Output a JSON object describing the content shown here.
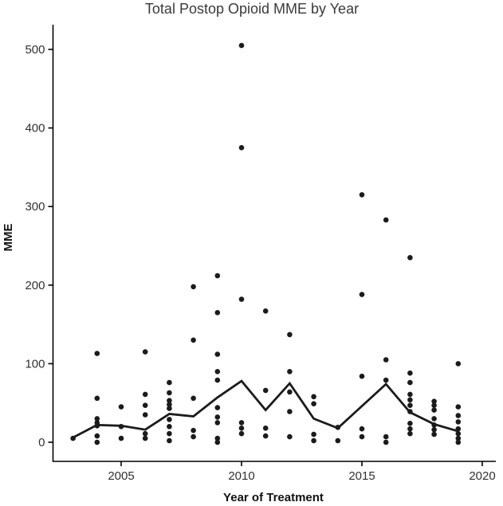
{
  "page": {
    "background": "#ffffff"
  },
  "chart_data": {
    "type": "scatter",
    "title": "Total Postop Opioid MME by Year",
    "xlabel": "Year of Treatment",
    "ylabel": "MME",
    "x_ticks": [
      2005,
      2010,
      2015,
      2020
    ],
    "y_ticks": [
      0,
      100,
      200,
      300,
      400,
      500
    ],
    "xlim": [
      2002.2,
      2020.6
    ],
    "ylim": [
      0,
      530
    ],
    "grid": false,
    "legend": "none",
    "point_color": "#1b1b1b",
    "line_color": "#1b1b1b",
    "axis_color": "#000000",
    "points_by_year": [
      {
        "year": 2003,
        "values": [
          5
        ]
      },
      {
        "year": 2004,
        "values": [
          113,
          56,
          30,
          25,
          21,
          8,
          0
        ]
      },
      {
        "year": 2005,
        "values": [
          45,
          20,
          5
        ]
      },
      {
        "year": 2006,
        "values": [
          115,
          61,
          47,
          35,
          11,
          5
        ]
      },
      {
        "year": 2007,
        "values": [
          76,
          63,
          53,
          48,
          43,
          29,
          20,
          11,
          2
        ]
      },
      {
        "year": 2008,
        "values": [
          198,
          130,
          56,
          15,
          7
        ]
      },
      {
        "year": 2009,
        "values": [
          212,
          165,
          112,
          90,
          79,
          44,
          32,
          25,
          5,
          0
        ]
      },
      {
        "year": 2010,
        "values": [
          505,
          375,
          182,
          25,
          18,
          11
        ]
      },
      {
        "year": 2011,
        "values": [
          167,
          66,
          18,
          8
        ]
      },
      {
        "year": 2012,
        "values": [
          137,
          90,
          64,
          39,
          7
        ]
      },
      {
        "year": 2013,
        "values": [
          58,
          49,
          10,
          2
        ]
      },
      {
        "year": 2014,
        "values": [
          19,
          2
        ]
      },
      {
        "year": 2015,
        "values": [
          315,
          188,
          84,
          17,
          7
        ]
      },
      {
        "year": 2016,
        "values": [
          283,
          105,
          79,
          7,
          0
        ]
      },
      {
        "year": 2017,
        "values": [
          235,
          88,
          76,
          61,
          54,
          47,
          39,
          24,
          17,
          11
        ]
      },
      {
        "year": 2018,
        "values": [
          52,
          47,
          41,
          30,
          22,
          16,
          10
        ]
      },
      {
        "year": 2019,
        "values": [
          100,
          45,
          34,
          26,
          17,
          11,
          5,
          0
        ]
      }
    ],
    "mean_line": {
      "x": [
        2003,
        2004,
        2005,
        2006,
        2007,
        2008,
        2009,
        2010,
        2011,
        2012,
        2013,
        2014,
        2015,
        2016,
        2017,
        2018,
        2019
      ],
      "y": [
        6,
        22,
        21,
        16,
        36,
        33,
        57,
        78,
        41,
        75,
        30,
        18,
        46,
        74,
        38,
        23,
        14
      ]
    }
  }
}
